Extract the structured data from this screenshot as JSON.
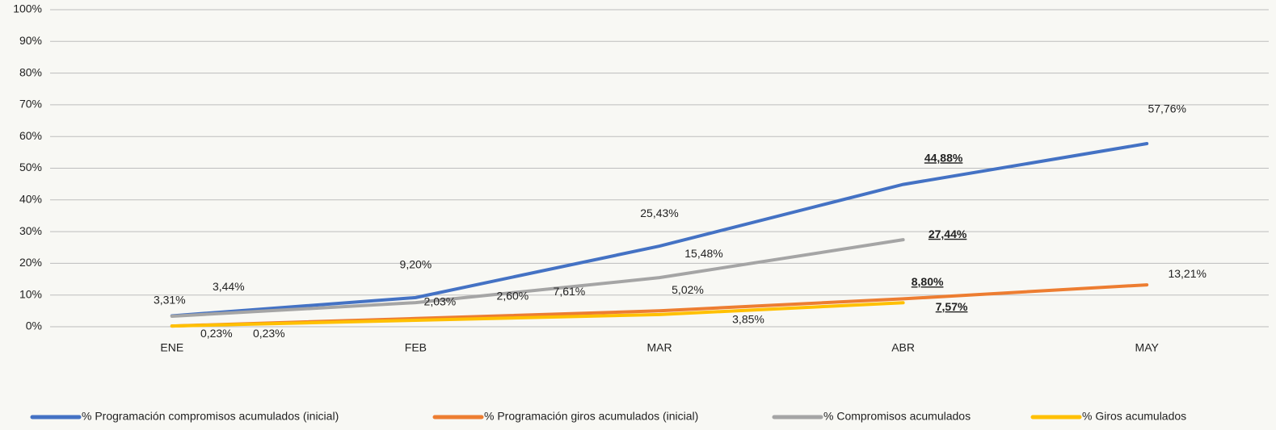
{
  "chart_data": {
    "type": "line",
    "categories": [
      "ENE",
      "FEB",
      "MAR",
      "ABR",
      "MAY"
    ],
    "series": [
      {
        "name": "% Programación compromisos acumulados (inicial)",
        "color": "#4472c4",
        "values": [
          3.44,
          9.2,
          25.43,
          44.88,
          57.76
        ],
        "value_labels": [
          "3,44%",
          "9,20%",
          "25,43%",
          "44,88%",
          "57,76%"
        ]
      },
      {
        "name": "% Programación giros acumulados (inicial)",
        "color": "#ed7d31",
        "values": [
          0.23,
          2.6,
          5.02,
          8.8,
          13.21
        ],
        "value_labels": [
          "0,23%",
          "2,60%",
          "5,02%",
          "8,80%",
          "13,21%"
        ]
      },
      {
        "name": "% Compromisos acumulados",
        "color": "#a5a5a5",
        "values": [
          3.31,
          7.61,
          15.48,
          27.44,
          null
        ],
        "value_labels": [
          "3,31%",
          "7,61%",
          "15,48%",
          "27,44%",
          null
        ]
      },
      {
        "name": "% Giros acumulados",
        "color": "#ffc000",
        "values": [
          0.23,
          2.03,
          3.85,
          7.57,
          null
        ],
        "value_labels": [
          "0,23%",
          "2,03%",
          "3,85%",
          "7,57%",
          null
        ]
      }
    ],
    "ylim": [
      0,
      100
    ],
    "yticks": [
      {
        "value": 0,
        "label": "0%"
      },
      {
        "value": 10,
        "label": "10%"
      },
      {
        "value": 20,
        "label": "20%"
      },
      {
        "value": 30,
        "label": "30%"
      },
      {
        "value": 40,
        "label": "40%"
      },
      {
        "value": 50,
        "label": "50%"
      },
      {
        "value": 60,
        "label": "60%"
      },
      {
        "value": 70,
        "label": "70%"
      },
      {
        "value": 80,
        "label": "80%"
      },
      {
        "value": 90,
        "label": "90%"
      },
      {
        "value": 100,
        "label": "100%"
      }
    ],
    "grid": true,
    "legend": "bottom"
  }
}
